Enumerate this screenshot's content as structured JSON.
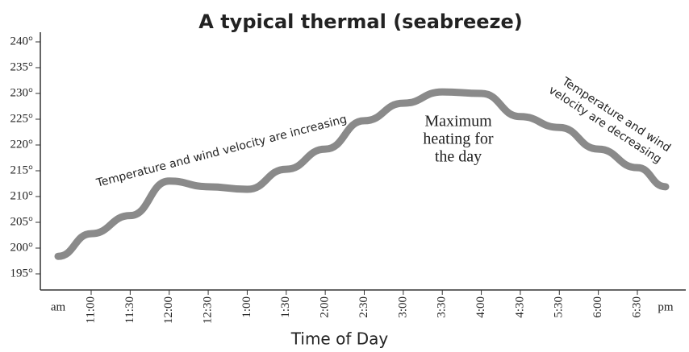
{
  "chart_data": {
    "type": "line",
    "title": "A typical thermal (seabreeze)",
    "x_label": "Time of Day",
    "categories": [
      "am",
      "11:00",
      "11:30",
      "12:00",
      "12:30",
      "1:00",
      "1:30",
      "2:00",
      "2:30",
      "3:00",
      "3:30",
      "4:00",
      "4:30",
      "5:30",
      "6:00",
      "6:30",
      "pm"
    ],
    "series": [
      {
        "color": "#8a8a8a",
        "values": [
          198.4,
          202.8,
          206.3,
          213,
          211.9,
          211.4,
          215.3,
          219.2,
          224.7,
          228.1,
          230.3,
          230,
          225.5,
          223.4,
          219.2,
          215.6,
          211.9
        ]
      }
    ],
    "ylim": [
      193,
      242
    ],
    "yticks": [
      {
        "value": 195,
        "label": "195°"
      },
      {
        "value": 200,
        "label": "200°"
      },
      {
        "value": 205,
        "label": "205°"
      },
      {
        "value": 210,
        "label": "210°"
      },
      {
        "value": 215,
        "label": "215°"
      },
      {
        "value": 220,
        "label": "220°"
      },
      {
        "value": 225,
        "label": "225°"
      },
      {
        "value": 230,
        "label": "230°"
      },
      {
        "value": 235,
        "label": "235°"
      },
      {
        "value": 240,
        "label": "240°"
      }
    ],
    "annotations": [
      {
        "text": [
          "Temperature and wind velocity are increasing"
        ]
      },
      {
        "text": [
          "Maximum",
          "heating for",
          "the day"
        ]
      },
      {
        "text": [
          "Temperature and wind",
          "velocity are decreasing"
        ]
      }
    ]
  }
}
